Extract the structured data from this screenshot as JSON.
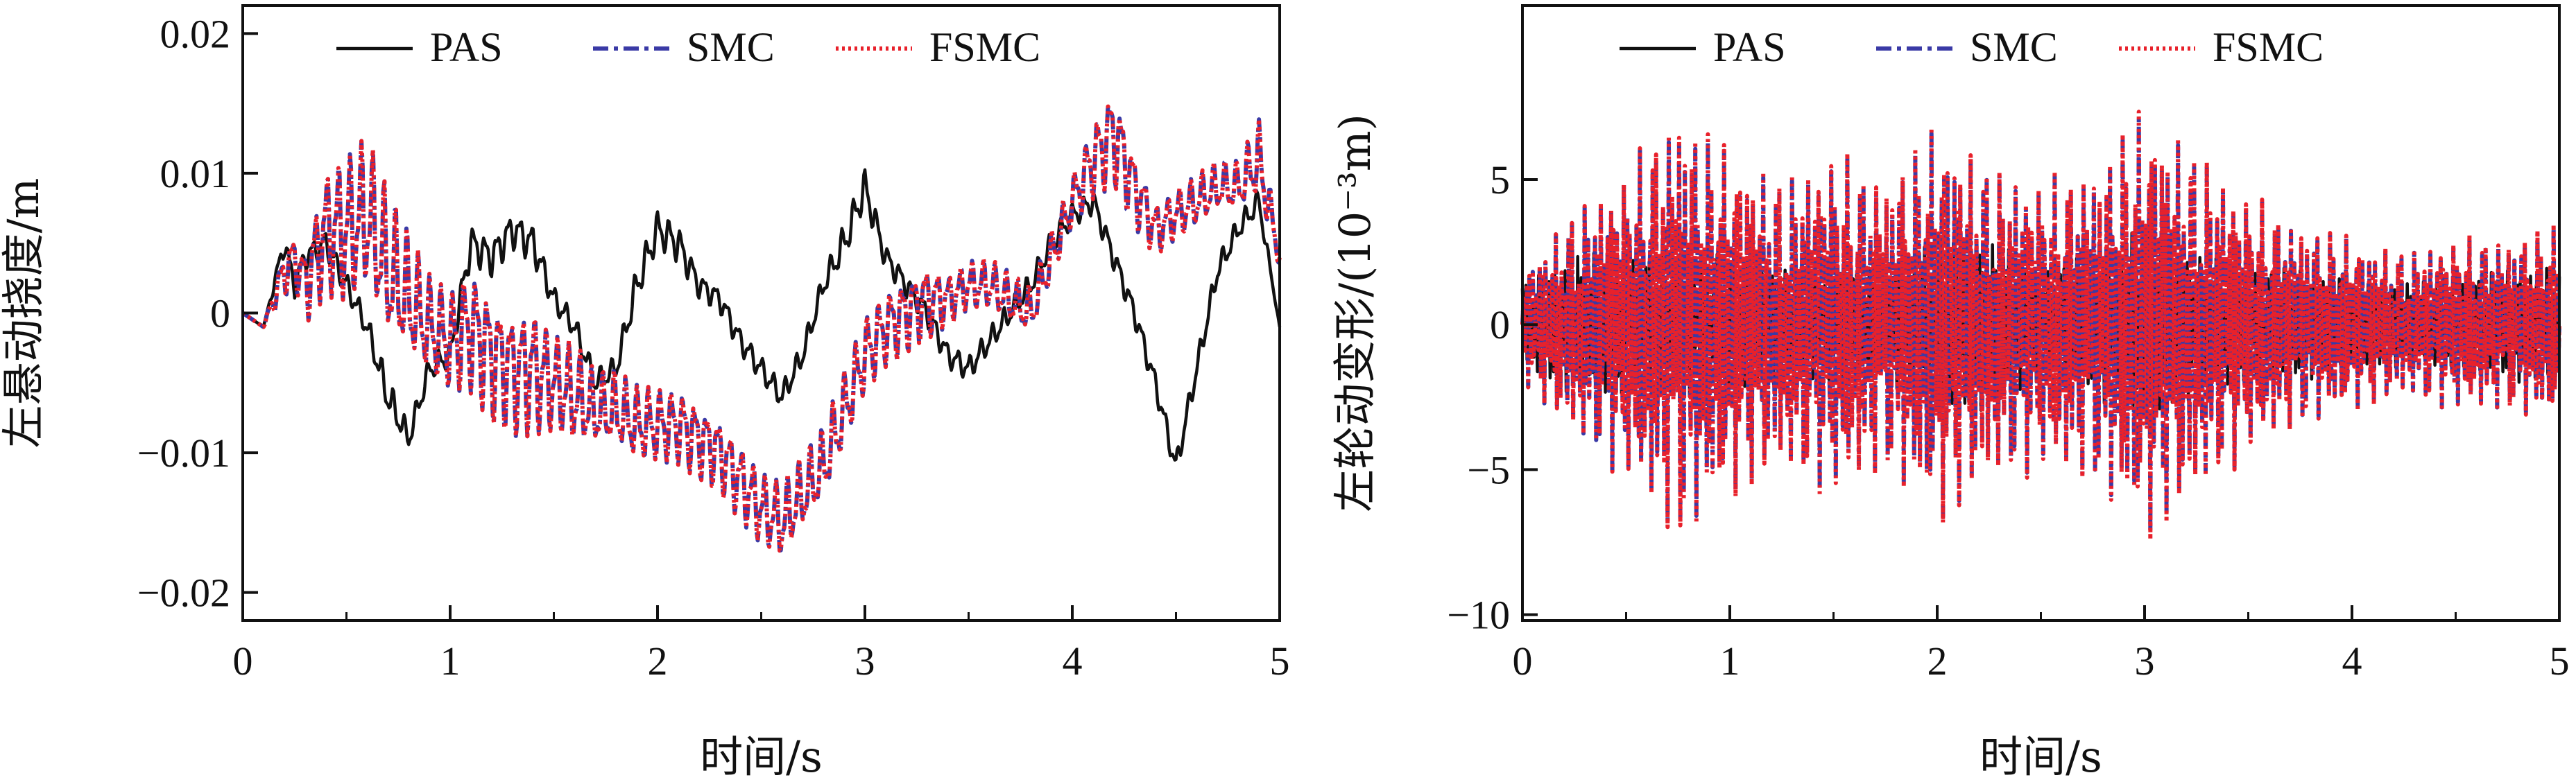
{
  "chart_data": [
    {
      "type": "line",
      "xlabel": "时间/s",
      "ylabel": "左悬动挠度/m",
      "xlim": [
        0,
        5
      ],
      "ylim": [
        -0.022,
        0.022
      ],
      "x_ticks": [
        "0",
        "1",
        "2",
        "3",
        "4",
        "5"
      ],
      "y_ticks": [
        "0.02",
        "0.01",
        "0",
        "−0.01",
        "−0.02"
      ],
      "y_tick_values": [
        0.02,
        0.01,
        0,
        -0.01,
        -0.02
      ],
      "legend": [
        "PAS",
        "SMC",
        "FSMC"
      ],
      "legend_position": "top",
      "x": [
        0,
        0.1,
        0.2,
        0.25,
        0.3,
        0.4,
        0.5,
        0.6,
        0.7,
        0.8,
        0.9,
        1.0,
        1.1,
        1.2,
        1.3,
        1.4,
        1.5,
        1.6,
        1.7,
        1.8,
        1.9,
        2.0,
        2.1,
        2.2,
        2.3,
        2.4,
        2.5,
        2.6,
        2.7,
        2.8,
        2.9,
        3.0,
        3.1,
        3.2,
        3.3,
        3.4,
        3.5,
        3.6,
        3.7,
        3.8,
        3.9,
        4.0,
        4.1,
        4.2,
        4.3,
        4.4,
        4.5,
        4.6,
        4.7,
        4.8,
        4.9,
        5.0
      ],
      "series": [
        {
          "name": "PAS",
          "color": "#111111",
          "values": [
            0,
            -0.001,
            0.005,
            0.002,
            0.004,
            0.005,
            0.002,
            -0.001,
            -0.006,
            -0.009,
            -0.004,
            -0.003,
            0.005,
            0.004,
            0.006,
            0.005,
            0.001,
            -0.001,
            -0.005,
            -0.004,
            0.002,
            0.006,
            0.005,
            0.002,
            0.001,
            -0.002,
            -0.004,
            -0.006,
            -0.003,
            0.002,
            0.005,
            0.009,
            0.004,
            0.002,
            0.0,
            -0.003,
            -0.004,
            -0.002,
            0.0,
            0.002,
            0.005,
            0.007,
            0.008,
            0.004,
            0.0,
            -0.005,
            -0.011,
            -0.004,
            0.003,
            0.006,
            0.008,
            -0.001
          ],
          "amp": [
            0,
            0,
            0.001,
            0.001,
            0.001,
            0.001,
            0.001,
            0.001,
            0.0015,
            0.001,
            0.001,
            0.001,
            0.0015,
            0.0015,
            0.0015,
            0.0015,
            0.001,
            0.001,
            0.001,
            0.001,
            0.0015,
            0.0015,
            0.0015,
            0.001,
            0.001,
            0.001,
            0.001,
            0.001,
            0.001,
            0.001,
            0.0015,
            0.0015,
            0.001,
            0.001,
            0.001,
            0.001,
            0.001,
            0.001,
            0.001,
            0.001,
            0.001,
            0.001,
            0.001,
            0.001,
            0.001,
            0.001,
            0.001,
            0.001,
            0.001,
            0.001,
            0.001,
            0
          ]
        },
        {
          "name": "SMC",
          "color": "#3a3aa6",
          "values": [
            0,
            -0.001,
            0.003,
            0.004,
            0.002,
            0.006,
            0.006,
            0.007,
            0.003,
            0.001,
            -0.001,
            -0.002,
            -0.001,
            -0.003,
            -0.004,
            -0.004,
            -0.005,
            -0.006,
            -0.007,
            -0.007,
            -0.008,
            -0.008,
            -0.008,
            -0.009,
            -0.01,
            -0.012,
            -0.014,
            -0.015,
            -0.013,
            -0.011,
            -0.007,
            -0.003,
            -0.001,
            0.0,
            0.001,
            0.001,
            0.002,
            0.002,
            0.001,
            0.0,
            0.004,
            0.008,
            0.011,
            0.013,
            0.009,
            0.006,
            0.007,
            0.008,
            0.009,
            0.009,
            0.011,
            0.004
          ],
          "amp": [
            0,
            0,
            0.002,
            0.002,
            0.003,
            0.005,
            0.006,
            0.006,
            0.006,
            0.005,
            0.004,
            0.004,
            0.005,
            0.005,
            0.005,
            0.005,
            0.004,
            0.004,
            0.003,
            0.003,
            0.003,
            0.003,
            0.003,
            0.003,
            0.003,
            0.003,
            0.003,
            0.003,
            0.003,
            0.003,
            0.003,
            0.003,
            0.003,
            0.003,
            0.003,
            0.002,
            0.002,
            0.002,
            0.002,
            0.002,
            0.002,
            0.002,
            0.003,
            0.004,
            0.003,
            0.002,
            0.002,
            0.002,
            0.002,
            0.002,
            0.003,
            0.001
          ]
        },
        {
          "name": "FSMC",
          "color": "#e8212b",
          "values": [
            0,
            -0.001,
            0.003,
            0.004,
            0.002,
            0.006,
            0.006,
            0.007,
            0.003,
            0.001,
            -0.001,
            -0.002,
            -0.001,
            -0.003,
            -0.004,
            -0.004,
            -0.005,
            -0.006,
            -0.007,
            -0.007,
            -0.008,
            -0.008,
            -0.008,
            -0.009,
            -0.01,
            -0.012,
            -0.014,
            -0.015,
            -0.013,
            -0.011,
            -0.007,
            -0.003,
            -0.001,
            0.0,
            0.001,
            0.001,
            0.002,
            0.002,
            0.001,
            0.0,
            0.004,
            0.008,
            0.011,
            0.013,
            0.009,
            0.006,
            0.007,
            0.008,
            0.009,
            0.009,
            0.011,
            0.004
          ],
          "amp": [
            0,
            0,
            0.002,
            0.002,
            0.003,
            0.005,
            0.006,
            0.006,
            0.006,
            0.005,
            0.004,
            0.004,
            0.005,
            0.005,
            0.005,
            0.005,
            0.004,
            0.004,
            0.003,
            0.003,
            0.003,
            0.003,
            0.003,
            0.003,
            0.003,
            0.003,
            0.003,
            0.003,
            0.003,
            0.003,
            0.003,
            0.003,
            0.003,
            0.003,
            0.003,
            0.002,
            0.002,
            0.002,
            0.002,
            0.002,
            0.002,
            0.002,
            0.003,
            0.004,
            0.003,
            0.002,
            0.002,
            0.002,
            0.002,
            0.002,
            0.003,
            0.001
          ]
        }
      ]
    },
    {
      "type": "line",
      "xlabel": "时间/s",
      "ylabel": "左轮动变形/(10⁻³m)",
      "xlim": [
        0,
        5
      ],
      "ylim": [
        -10.2,
        11
      ],
      "x_ticks": [
        "0",
        "1",
        "2",
        "3",
        "4",
        "5"
      ],
      "y_ticks": [
        "5",
        "0",
        "−5",
        "−10"
      ],
      "y_tick_values": [
        5,
        0,
        -5,
        -10
      ],
      "legend": [
        "PAS",
        "SMC",
        "FSMC"
      ],
      "legend_position": "top",
      "x": [
        0,
        0.25,
        0.5,
        0.75,
        1.0,
        1.25,
        1.5,
        1.75,
        2.0,
        2.25,
        2.5,
        2.75,
        3.0,
        3.25,
        3.5,
        3.75,
        4.0,
        4.25,
        4.5,
        4.75,
        5.0
      ],
      "series": [
        {
          "name": "PAS",
          "color": "#111111",
          "values": [
            0,
            0,
            0,
            0,
            0,
            0,
            0,
            0,
            0,
            0,
            0,
            0,
            0,
            0,
            0,
            0,
            0,
            0,
            0,
            0,
            0
          ],
          "amp": [
            1.5,
            2.5,
            2.5,
            2.5,
            2.5,
            2.0,
            2.0,
            2.0,
            3.0,
            3.0,
            2.0,
            2.5,
            3.5,
            2.5,
            2.0,
            2.0,
            1.5,
            1.5,
            1.5,
            2.0,
            2.0
          ]
        },
        {
          "name": "SMC",
          "color": "#3a3aa6",
          "values": [
            0,
            0,
            0,
            0,
            0,
            0,
            0,
            0,
            0,
            0,
            0,
            0,
            0,
            0,
            0,
            0,
            0,
            0,
            0,
            0,
            0
          ],
          "amp": [
            2.0,
            4.0,
            5.5,
            7.5,
            6.0,
            5.0,
            6.0,
            5.0,
            7.0,
            5.5,
            5.0,
            5.5,
            7.5,
            6.0,
            4.5,
            3.5,
            3.0,
            2.5,
            3.0,
            3.0,
            3.5
          ]
        },
        {
          "name": "FSMC",
          "color": "#e8212b",
          "values": [
            0,
            0,
            0,
            0,
            0,
            0,
            0,
            0,
            0,
            0,
            0,
            0,
            0,
            0,
            0,
            0,
            0,
            0,
            0,
            0,
            0
          ],
          "amp": [
            2.0,
            4.0,
            5.5,
            7.8,
            6.2,
            5.2,
            6.2,
            5.2,
            7.2,
            5.6,
            5.2,
            5.6,
            7.8,
            6.2,
            4.6,
            3.6,
            3.1,
            2.6,
            3.1,
            3.1,
            3.6
          ]
        }
      ]
    }
  ]
}
